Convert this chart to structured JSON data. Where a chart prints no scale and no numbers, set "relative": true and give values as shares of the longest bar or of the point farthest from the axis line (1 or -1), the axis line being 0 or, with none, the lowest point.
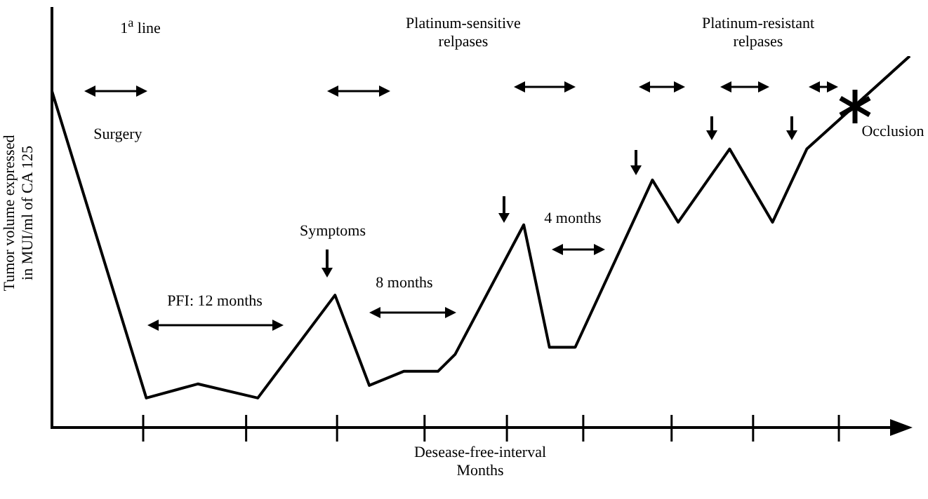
{
  "chart_data": {
    "type": "line",
    "relative": true,
    "xlabel": "Desease-free-interval\nMonths",
    "ylabel": "Tumor volume expressed\nin MUI/ml of CA 125",
    "categories": [
      null,
      null,
      null,
      null,
      null,
      null,
      null,
      null,
      null,
      null,
      null,
      null,
      null,
      null,
      null,
      null,
      null,
      null,
      null,
      null,
      null,
      null,
      null,
      null,
      null,
      null,
      null,
      null,
      null,
      null,
      null,
      null,
      null,
      null,
      null,
      null,
      null,
      null,
      null,
      null,
      null,
      null,
      null,
      null,
      null,
      null,
      null,
      null,
      null,
      null,
      null,
      null,
      null,
      null,
      null,
      null,
      null,
      null,
      null,
      null,
      null,
      null,
      null,
      null,
      null,
      null,
      null,
      null,
      null,
      null,
      null,
      null,
      null,
      null,
      null,
      null,
      null,
      null,
      null,
      null,
      null,
      null,
      null,
      null,
      null,
      null,
      null,
      null,
      null,
      null,
      null,
      null,
      null,
      null,
      null,
      null,
      null,
      null,
      null,
      null,
      null
    ],
    "series": [
      {
        "color": "#000000",
        "values": [
          0.905,
          null,
          null,
          null,
          null,
          null,
          null,
          null,
          null,
          null,
          null,
          0.076,
          null,
          null,
          null,
          null,
          null,
          0.114,
          null,
          null,
          null,
          null,
          null,
          null,
          0.076,
          null,
          null,
          null,
          null,
          null,
          null,
          null,
          null,
          0.354,
          null,
          null,
          null,
          0.11,
          null,
          null,
          null,
          0.148,
          null,
          null,
          null,
          0.148,
          null,
          0.194,
          null,
          null,
          null,
          null,
          null,
          null,
          null,
          0.544,
          null,
          null,
          0.213,
          null,
          null,
          0.213,
          null,
          null,
          null,
          null,
          null,
          null,
          null,
          null,
          0.665,
          null,
          null,
          0.551,
          null,
          null,
          null,
          null,
          null,
          0.749,
          null,
          null,
          null,
          null,
          0.551,
          null,
          null,
          null,
          0.749,
          null,
          null,
          null,
          null,
          null,
          null,
          null,
          null,
          null,
          null,
          null,
          1
        ]
      }
    ],
    "marker": "none",
    "line_style": "solid",
    "annotations": [
      "1$^{a}$ line",
      "Platinum-sensitive\nrelpases",
      "Platinum-resistant\nrelpases",
      "Surgery",
      "Symptoms",
      "PFI: 12 months",
      "8 months",
      "4 months",
      "Occlusion"
    ]
  }
}
